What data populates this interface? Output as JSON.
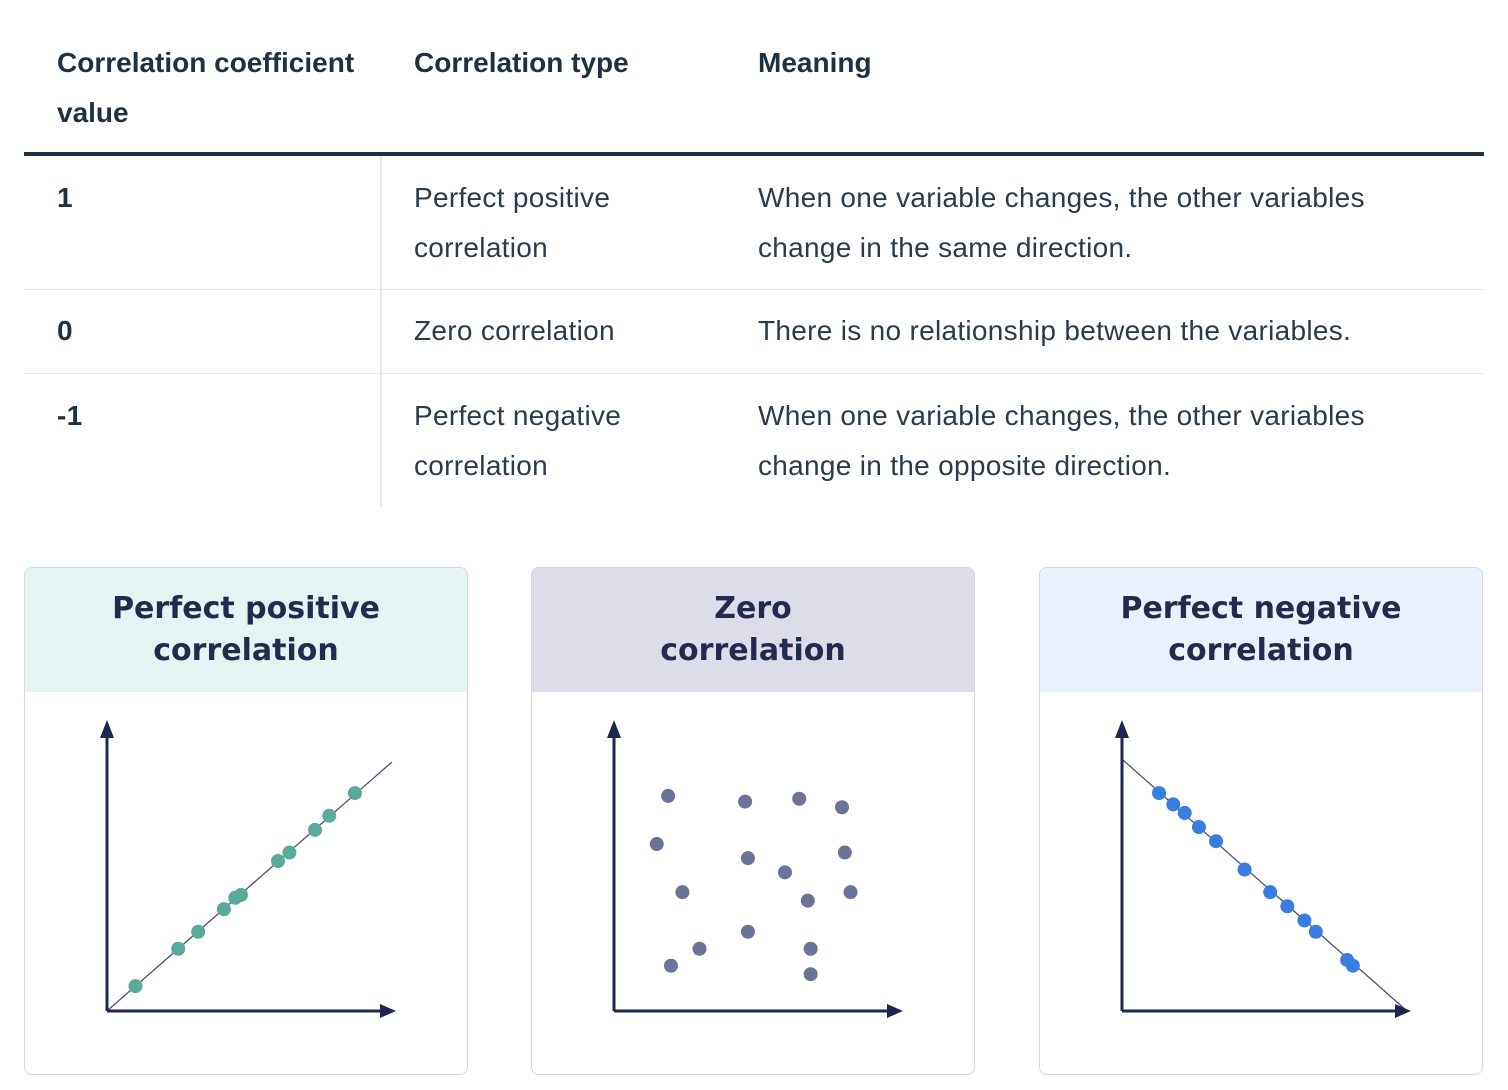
{
  "table": {
    "headers": {
      "value": "Correlation coefficient value",
      "type": "Correlation type",
      "meaning": "Meaning"
    },
    "rows": [
      {
        "value": "1",
        "type": "Perfect positive correlation",
        "meaning": "When one variable changes, the other variables change in the same direction."
      },
      {
        "value": "0",
        "type": "Zero correlation",
        "meaning": "There is no relationship between the variables."
      },
      {
        "value": "-1",
        "type": "Perfect negative correlation",
        "meaning": "When one variable changes, the other variables change in the opposite direction."
      }
    ]
  },
  "colors": {
    "header_rule": "#1d3142",
    "positive_head": "#e3f4f3",
    "zero_head": "#dcdde9",
    "negative_head": "#e9f1fd",
    "positive_dot": "#5aa99a",
    "zero_dot": "#6c7398",
    "negative_dot": "#3a7de0",
    "axis": "#1f2650"
  },
  "cards": [
    {
      "title": "Perfect positive\ncorrelation",
      "kind": "positive"
    },
    {
      "title": "Zero\ncorrelation",
      "kind": "zero"
    },
    {
      "title": "Perfect negative\ncorrelation",
      "kind": "negative"
    }
  ],
  "chart_data": [
    {
      "type": "scatter",
      "xlim": [
        0,
        1
      ],
      "ylim": [
        0,
        1
      ],
      "trendline": [
        [
          0,
          0
        ],
        [
          1,
          0.88
        ]
      ],
      "x": [
        0.1,
        0.25,
        0.32,
        0.41,
        0.45,
        0.47,
        0.6,
        0.64,
        0.73,
        0.78,
        0.87
      ],
      "y": [
        0.088,
        0.22,
        0.28,
        0.36,
        0.4,
        0.41,
        0.53,
        0.56,
        0.64,
        0.69,
        0.77
      ]
    },
    {
      "type": "scatter",
      "xlim": [
        0,
        1
      ],
      "ylim": [
        0,
        1
      ],
      "x": [
        0.19,
        0.15,
        0.24,
        0.2,
        0.3,
        0.46,
        0.47,
        0.47,
        0.6,
        0.65,
        0.68,
        0.69,
        0.69,
        0.8,
        0.81,
        0.83
      ],
      "y": [
        0.76,
        0.59,
        0.42,
        0.16,
        0.22,
        0.74,
        0.54,
        0.28,
        0.49,
        0.75,
        0.39,
        0.22,
        0.13,
        0.72,
        0.56,
        0.42
      ]
    },
    {
      "type": "scatter",
      "xlim": [
        0,
        1
      ],
      "ylim": [
        0,
        1
      ],
      "trendline": [
        [
          0,
          0.89
        ],
        [
          1,
          0
        ]
      ],
      "x": [
        0.13,
        0.18,
        0.22,
        0.27,
        0.33,
        0.43,
        0.52,
        0.58,
        0.64,
        0.68,
        0.79,
        0.81
      ],
      "y": [
        0.77,
        0.73,
        0.7,
        0.65,
        0.6,
        0.5,
        0.42,
        0.37,
        0.32,
        0.28,
        0.18,
        0.16
      ]
    }
  ]
}
